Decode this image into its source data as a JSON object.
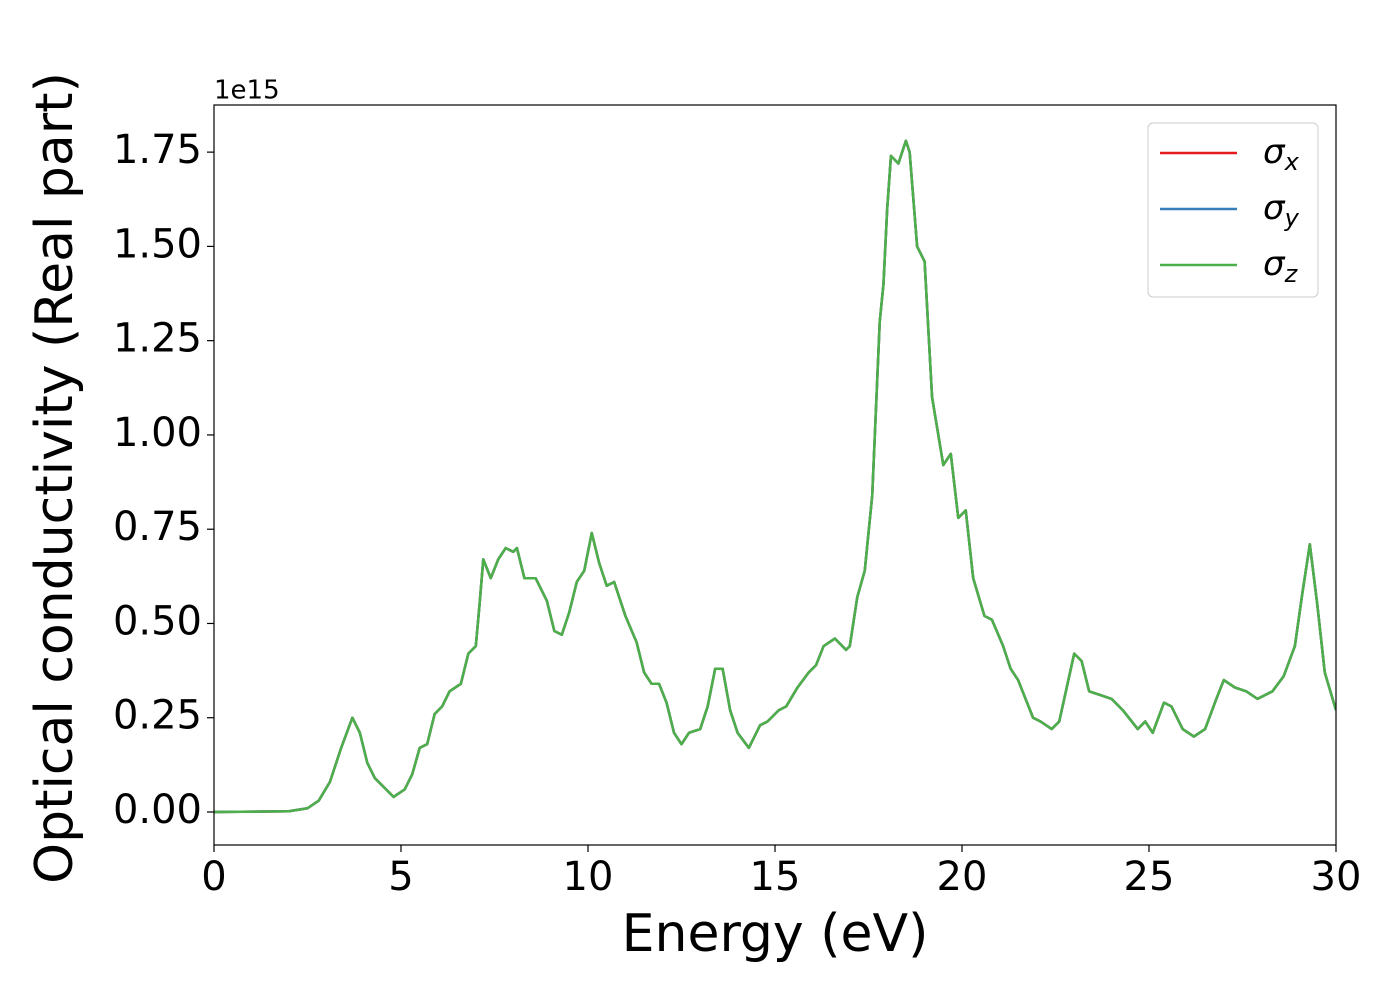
{
  "chart_data": {
    "type": "line",
    "xlabel": "Energy (eV)",
    "ylabel": "Optical conductivity (Real part)",
    "y_offset_text": "1e15",
    "x": [
      0,
      2,
      2.5,
      2.8,
      3.1,
      3.4,
      3.7,
      3.9,
      4.1,
      4.3,
      4.5,
      4.8,
      5.1,
      5.3,
      5.5,
      5.7,
      5.9,
      6.1,
      6.3,
      6.6,
      6.8,
      7.0,
      7.1,
      7.2,
      7.4,
      7.6,
      7.8,
      8.0,
      8.1,
      8.3,
      8.6,
      8.9,
      9.1,
      9.3,
      9.5,
      9.7,
      9.9,
      10.1,
      10.3,
      10.5,
      10.7,
      11.0,
      11.3,
      11.5,
      11.7,
      11.9,
      12.1,
      12.3,
      12.5,
      12.7,
      13.0,
      13.2,
      13.4,
      13.6,
      13.8,
      14.0,
      14.3,
      14.6,
      14.8,
      15.1,
      15.3,
      15.6,
      15.9,
      16.1,
      16.3,
      16.6,
      16.9,
      17.0,
      17.2,
      17.4,
      17.6,
      17.8,
      17.9,
      18.0,
      18.1,
      18.3,
      18.5,
      18.6,
      18.8,
      19.0,
      19.2,
      19.5,
      19.7,
      19.9,
      20.1,
      20.3,
      20.6,
      20.8,
      21.1,
      21.3,
      21.5,
      21.9,
      22.1,
      22.4,
      22.6,
      22.8,
      23.0,
      23.2,
      23.4,
      23.7,
      24.0,
      24.3,
      24.7,
      24.9,
      25.1,
      25.4,
      25.6,
      25.9,
      26.2,
      26.5,
      26.8,
      27.0,
      27.3,
      27.6,
      27.9,
      28.3,
      28.6,
      28.9,
      29.1,
      29.3,
      29.5,
      29.7,
      30
    ],
    "series": [
      {
        "name": "σx",
        "color": "#e41a1c",
        "values": [
          0,
          0.002,
          0.01,
          0.03,
          0.08,
          0.17,
          0.25,
          0.21,
          0.13,
          0.09,
          0.07,
          0.04,
          0.06,
          0.1,
          0.17,
          0.18,
          0.26,
          0.28,
          0.32,
          0.34,
          0.42,
          0.44,
          0.55,
          0.67,
          0.62,
          0.67,
          0.7,
          0.69,
          0.7,
          0.62,
          0.62,
          0.56,
          0.48,
          0.47,
          0.53,
          0.61,
          0.64,
          0.74,
          0.66,
          0.6,
          0.61,
          0.52,
          0.45,
          0.37,
          0.34,
          0.34,
          0.29,
          0.21,
          0.18,
          0.21,
          0.22,
          0.28,
          0.38,
          0.38,
          0.27,
          0.21,
          0.17,
          0.23,
          0.24,
          0.27,
          0.28,
          0.33,
          0.37,
          0.39,
          0.44,
          0.46,
          0.43,
          0.44,
          0.57,
          0.64,
          0.84,
          1.3,
          1.4,
          1.6,
          1.74,
          1.72,
          1.78,
          1.75,
          1.5,
          1.46,
          1.1,
          0.92,
          0.95,
          0.78,
          0.8,
          0.62,
          0.52,
          0.51,
          0.44,
          0.38,
          0.35,
          0.25,
          0.24,
          0.22,
          0.24,
          0.33,
          0.42,
          0.4,
          0.32,
          0.31,
          0.3,
          0.27,
          0.22,
          0.24,
          0.21,
          0.29,
          0.28,
          0.22,
          0.2,
          0.22,
          0.3,
          0.35,
          0.33,
          0.32,
          0.3,
          0.32,
          0.36,
          0.44,
          0.58,
          0.71,
          0.55,
          0.37,
          0.27
        ]
      },
      {
        "name": "σy",
        "color": "#377eb8",
        "values": [
          0,
          0.002,
          0.01,
          0.03,
          0.08,
          0.17,
          0.25,
          0.21,
          0.13,
          0.09,
          0.07,
          0.04,
          0.06,
          0.1,
          0.17,
          0.18,
          0.26,
          0.28,
          0.32,
          0.34,
          0.42,
          0.44,
          0.55,
          0.67,
          0.62,
          0.67,
          0.7,
          0.69,
          0.7,
          0.62,
          0.62,
          0.56,
          0.48,
          0.47,
          0.53,
          0.61,
          0.64,
          0.74,
          0.66,
          0.6,
          0.61,
          0.52,
          0.45,
          0.37,
          0.34,
          0.34,
          0.29,
          0.21,
          0.18,
          0.21,
          0.22,
          0.28,
          0.38,
          0.38,
          0.27,
          0.21,
          0.17,
          0.23,
          0.24,
          0.27,
          0.28,
          0.33,
          0.37,
          0.39,
          0.44,
          0.46,
          0.43,
          0.44,
          0.57,
          0.64,
          0.84,
          1.3,
          1.4,
          1.6,
          1.74,
          1.72,
          1.78,
          1.75,
          1.5,
          1.46,
          1.1,
          0.92,
          0.95,
          0.78,
          0.8,
          0.62,
          0.52,
          0.51,
          0.44,
          0.38,
          0.35,
          0.25,
          0.24,
          0.22,
          0.24,
          0.33,
          0.42,
          0.4,
          0.32,
          0.31,
          0.3,
          0.27,
          0.22,
          0.24,
          0.21,
          0.29,
          0.28,
          0.22,
          0.2,
          0.22,
          0.3,
          0.35,
          0.33,
          0.32,
          0.3,
          0.32,
          0.36,
          0.44,
          0.58,
          0.71,
          0.55,
          0.37,
          0.27
        ]
      },
      {
        "name": "σz",
        "color": "#4daf4a",
        "values": [
          0,
          0.002,
          0.01,
          0.03,
          0.08,
          0.17,
          0.25,
          0.21,
          0.13,
          0.09,
          0.07,
          0.04,
          0.06,
          0.1,
          0.17,
          0.18,
          0.26,
          0.28,
          0.32,
          0.34,
          0.42,
          0.44,
          0.55,
          0.67,
          0.62,
          0.67,
          0.7,
          0.69,
          0.7,
          0.62,
          0.62,
          0.56,
          0.48,
          0.47,
          0.53,
          0.61,
          0.64,
          0.74,
          0.66,
          0.6,
          0.61,
          0.52,
          0.45,
          0.37,
          0.34,
          0.34,
          0.29,
          0.21,
          0.18,
          0.21,
          0.22,
          0.28,
          0.38,
          0.38,
          0.27,
          0.21,
          0.17,
          0.23,
          0.24,
          0.27,
          0.28,
          0.33,
          0.37,
          0.39,
          0.44,
          0.46,
          0.43,
          0.44,
          0.57,
          0.64,
          0.84,
          1.3,
          1.4,
          1.6,
          1.74,
          1.72,
          1.78,
          1.75,
          1.5,
          1.46,
          1.1,
          0.92,
          0.95,
          0.78,
          0.8,
          0.62,
          0.52,
          0.51,
          0.44,
          0.38,
          0.35,
          0.25,
          0.24,
          0.22,
          0.24,
          0.33,
          0.42,
          0.4,
          0.32,
          0.31,
          0.3,
          0.27,
          0.22,
          0.24,
          0.21,
          0.29,
          0.28,
          0.22,
          0.2,
          0.22,
          0.3,
          0.35,
          0.33,
          0.32,
          0.3,
          0.32,
          0.36,
          0.44,
          0.58,
          0.71,
          0.55,
          0.37,
          0.27
        ]
      }
    ],
    "xlim": [
      0,
      30
    ],
    "xticks": [
      0,
      5,
      10,
      15,
      20,
      25,
      30
    ],
    "ylim": [
      -0.0875,
      1.875
    ],
    "yticks": [
      {
        "value": 0,
        "label": "0.00"
      },
      {
        "value": 0.25,
        "label": "0.25"
      },
      {
        "value": 0.5,
        "label": "0.50"
      },
      {
        "value": 0.75,
        "label": "0.75"
      },
      {
        "value": 1,
        "label": "1.00"
      },
      {
        "value": 1.25,
        "label": "1.25"
      },
      {
        "value": 1.5,
        "label": "1.50"
      },
      {
        "value": 1.75,
        "label": "1.75"
      }
    ],
    "legend": "upper right",
    "grid": false
  }
}
